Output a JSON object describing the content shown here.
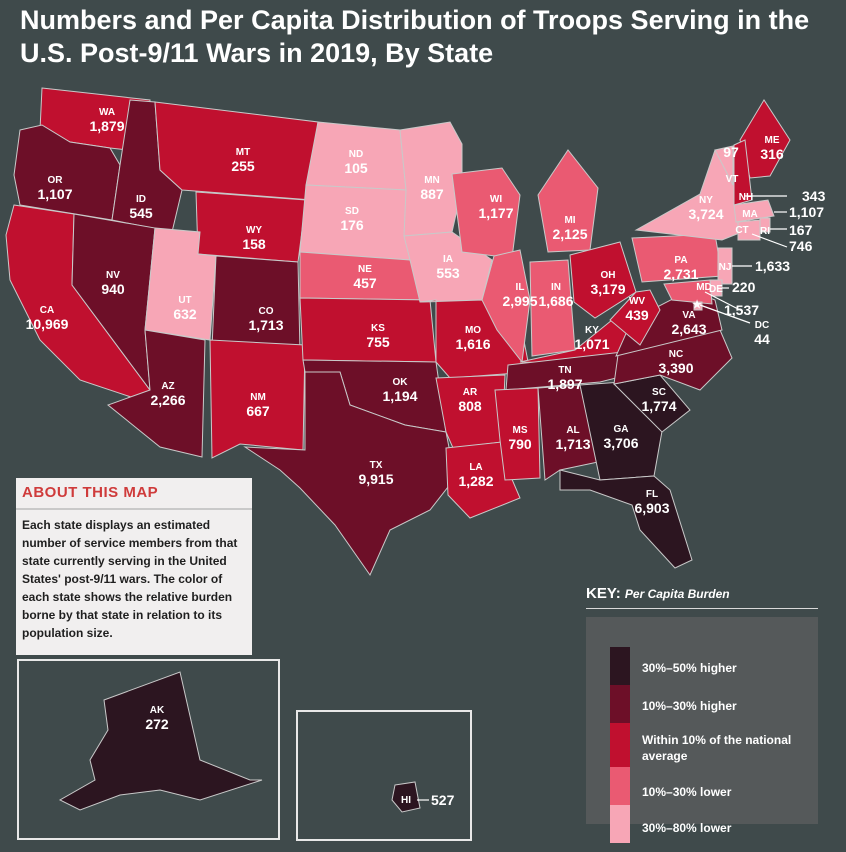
{
  "title": "Numbers and Per Capita Distribution of Troops Serving in the U.S. Post-9/11 Wars in 2019, By State",
  "about": {
    "heading": "ABOUT THIS MAP",
    "text": "Each state displays an estimated number of service members from that state currently serving in the United States' post-9/11 wars. The color of each state shows the relative burden borne by that state in relation to its population size."
  },
  "key": {
    "heading": "KEY:",
    "subheading": "Per Capita Burden",
    "categories": [
      {
        "label": "30%–50% higher",
        "color": "#2c1520"
      },
      {
        "label": "10%–30% higher",
        "color": "#6d0f28"
      },
      {
        "label": "Within 10% of the national average",
        "color": "#c0102f"
      },
      {
        "label": "10%–30% lower",
        "color": "#ea5a72"
      },
      {
        "label": "30%–80% lower",
        "color": "#f7a6b6"
      }
    ]
  },
  "states": [
    {
      "abbr": "WA",
      "value": "1,879",
      "tier": 2
    },
    {
      "abbr": "OR",
      "value": "1,107",
      "tier": 1
    },
    {
      "abbr": "CA",
      "value": "10,969",
      "tier": 2
    },
    {
      "abbr": "ID",
      "value": "545",
      "tier": 1
    },
    {
      "abbr": "NV",
      "value": "940",
      "tier": 1
    },
    {
      "abbr": "MT",
      "value": "255",
      "tier": 2
    },
    {
      "abbr": "WY",
      "value": "158",
      "tier": 2
    },
    {
      "abbr": "UT",
      "value": "632",
      "tier": 4
    },
    {
      "abbr": "AZ",
      "value": "2,266",
      "tier": 1
    },
    {
      "abbr": "CO",
      "value": "1,713",
      "tier": 1
    },
    {
      "abbr": "NM",
      "value": "667",
      "tier": 2
    },
    {
      "abbr": "ND",
      "value": "105",
      "tier": 4
    },
    {
      "abbr": "SD",
      "value": "176",
      "tier": 4
    },
    {
      "abbr": "NE",
      "value": "457",
      "tier": 3
    },
    {
      "abbr": "KS",
      "value": "755",
      "tier": 2
    },
    {
      "abbr": "OK",
      "value": "1,194",
      "tier": 1
    },
    {
      "abbr": "TX",
      "value": "9,915",
      "tier": 1
    },
    {
      "abbr": "MN",
      "value": "887",
      "tier": 4
    },
    {
      "abbr": "IA",
      "value": "553",
      "tier": 4
    },
    {
      "abbr": "MO",
      "value": "1,616",
      "tier": 2
    },
    {
      "abbr": "AR",
      "value": "808",
      "tier": 2
    },
    {
      "abbr": "LA",
      "value": "1,282",
      "tier": 2
    },
    {
      "abbr": "WI",
      "value": "1,177",
      "tier": 3
    },
    {
      "abbr": "IL",
      "value": "2,995",
      "tier": 3
    },
    {
      "abbr": "MI",
      "value": "2,125",
      "tier": 3
    },
    {
      "abbr": "IN",
      "value": "1,686",
      "tier": 3
    },
    {
      "abbr": "OH",
      "value": "3,179",
      "tier": 2
    },
    {
      "abbr": "KY",
      "value": "1,071",
      "tier": 2
    },
    {
      "abbr": "TN",
      "value": "1,897",
      "tier": 1
    },
    {
      "abbr": "MS",
      "value": "790",
      "tier": 2
    },
    {
      "abbr": "AL",
      "value": "1,713",
      "tier": 1
    },
    {
      "abbr": "GA",
      "value": "3,706",
      "tier": 0
    },
    {
      "abbr": "FL",
      "value": "6,903",
      "tier": 0
    },
    {
      "abbr": "SC",
      "value": "1,774",
      "tier": 0
    },
    {
      "abbr": "NC",
      "value": "3,390",
      "tier": 1
    },
    {
      "abbr": "VA",
      "value": "2,643",
      "tier": 1
    },
    {
      "abbr": "WV",
      "value": "439",
      "tier": 2
    },
    {
      "abbr": "PA",
      "value": "2,731",
      "tier": 3
    },
    {
      "abbr": "NY",
      "value": "3,724",
      "tier": 4
    },
    {
      "abbr": "VT",
      "value": "97",
      "tier": 4
    },
    {
      "abbr": "ME",
      "value": "316",
      "tier": 2
    },
    {
      "abbr": "NH",
      "value": "343",
      "tier": 2
    },
    {
      "abbr": "MA",
      "value": "1,107",
      "tier": 4
    },
    {
      "abbr": "RI",
      "value": "167",
      "tier": 4
    },
    {
      "abbr": "CT",
      "value": "746",
      "tier": 4
    },
    {
      "abbr": "NJ",
      "value": "1,633",
      "tier": 4
    },
    {
      "abbr": "DE",
      "value": "220",
      "tier": 4
    },
    {
      "abbr": "MD",
      "value": "1,537",
      "tier": 3
    },
    {
      "abbr": "DC",
      "value": "44",
      "tier": 4
    },
    {
      "abbr": "AK",
      "value": "272",
      "tier": 0
    },
    {
      "abbr": "HI",
      "value": "527",
      "tier": 0
    }
  ]
}
